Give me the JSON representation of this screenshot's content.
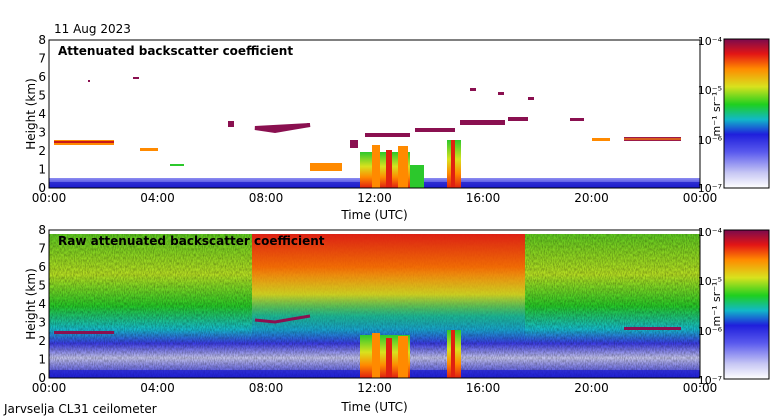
{
  "date_label": "11 Aug 2023",
  "footer_label": "Jarvselja CL31 ceilometer",
  "chart_data": [
    {
      "type": "heatmap",
      "title": "Attenuated backscatter coefficient",
      "xlabel": "Time (UTC)",
      "ylabel": "Height (km)",
      "x_ticks": [
        "00:00",
        "04:00",
        "08:00",
        "12:00",
        "16:00",
        "20:00",
        "00:00"
      ],
      "x_range_hours": [
        0,
        24
      ],
      "y_ticks": [
        "0",
        "1",
        "2",
        "3",
        "4",
        "5",
        "6",
        "7",
        "8"
      ],
      "ylim": [
        0,
        8
      ],
      "colorbar": {
        "label": "m⁻¹ sr⁻¹",
        "ticks": [
          "10⁻⁴",
          "10⁻⁵",
          "10⁻⁶",
          "10⁻⁷"
        ],
        "range_log10": [
          -7,
          -4
        ]
      },
      "features": [
        {
          "name": "boundary-layer",
          "t": [
            0,
            24
          ],
          "h": [
            0,
            0.4
          ],
          "log10": -6.6
        },
        {
          "name": "cloud-layer-1",
          "t": [
            0.2,
            2.4
          ],
          "h": [
            2.4,
            2.6
          ],
          "log10": -5.0
        },
        {
          "name": "cloud-layer-2",
          "t": [
            7.9,
            9.8
          ],
          "h": [
            3.2,
            3.4
          ],
          "log10": -4.4
        },
        {
          "name": "cloud-layer-3",
          "t": [
            20.9,
            23.1
          ],
          "h": [
            2.5,
            2.7
          ],
          "log10": -4.3
        },
        {
          "name": "precipitation-1",
          "t": [
            11.6,
            13.4
          ],
          "h": [
            0,
            2.4
          ],
          "log10": -5.3
        },
        {
          "name": "precipitation-2",
          "t": [
            14.6,
            15.2
          ],
          "h": [
            0,
            2.6
          ],
          "log10": -5.1
        }
      ]
    },
    {
      "type": "heatmap",
      "title": "Raw attenuated backscatter coefficient",
      "xlabel": "Time (UTC)",
      "ylabel": "Height (km)",
      "x_ticks": [
        "00:00",
        "04:00",
        "08:00",
        "12:00",
        "16:00",
        "20:00",
        "00:00"
      ],
      "x_range_hours": [
        0,
        24
      ],
      "y_ticks": [
        "0",
        "1",
        "2",
        "3",
        "4",
        "5",
        "6",
        "7",
        "8"
      ],
      "ylim": [
        0,
        8
      ],
      "colorbar": {
        "label": "m⁻¹ sr⁻¹",
        "ticks": [
          "10⁻⁴",
          "10⁻⁵",
          "10⁻⁶",
          "10⁻⁷"
        ],
        "range_log10": [
          -7,
          -4
        ]
      },
      "features": [
        {
          "name": "noisy-daytime-signal",
          "t": [
            7.5,
            18.0
          ],
          "h": [
            0,
            7.7
          ],
          "log10": -4.5
        },
        {
          "name": "cloud-layer-1",
          "t": [
            0.2,
            2.4
          ],
          "h": [
            2.4,
            2.6
          ],
          "log10": -4.3
        },
        {
          "name": "cloud-layer-2",
          "t": [
            7.9,
            9.8
          ],
          "h": [
            3.2,
            3.4
          ],
          "log10": -4.3
        },
        {
          "name": "cloud-layer-3",
          "t": [
            20.9,
            23.1
          ],
          "h": [
            2.5,
            2.7
          ],
          "log10": -4.3
        },
        {
          "name": "precipitation-1",
          "t": [
            11.6,
            13.4
          ],
          "h": [
            0,
            2.4
          ],
          "log10": -5.0
        },
        {
          "name": "precipitation-2",
          "t": [
            14.6,
            15.2
          ],
          "h": [
            0,
            2.6
          ],
          "log10": -5.0
        }
      ]
    }
  ]
}
